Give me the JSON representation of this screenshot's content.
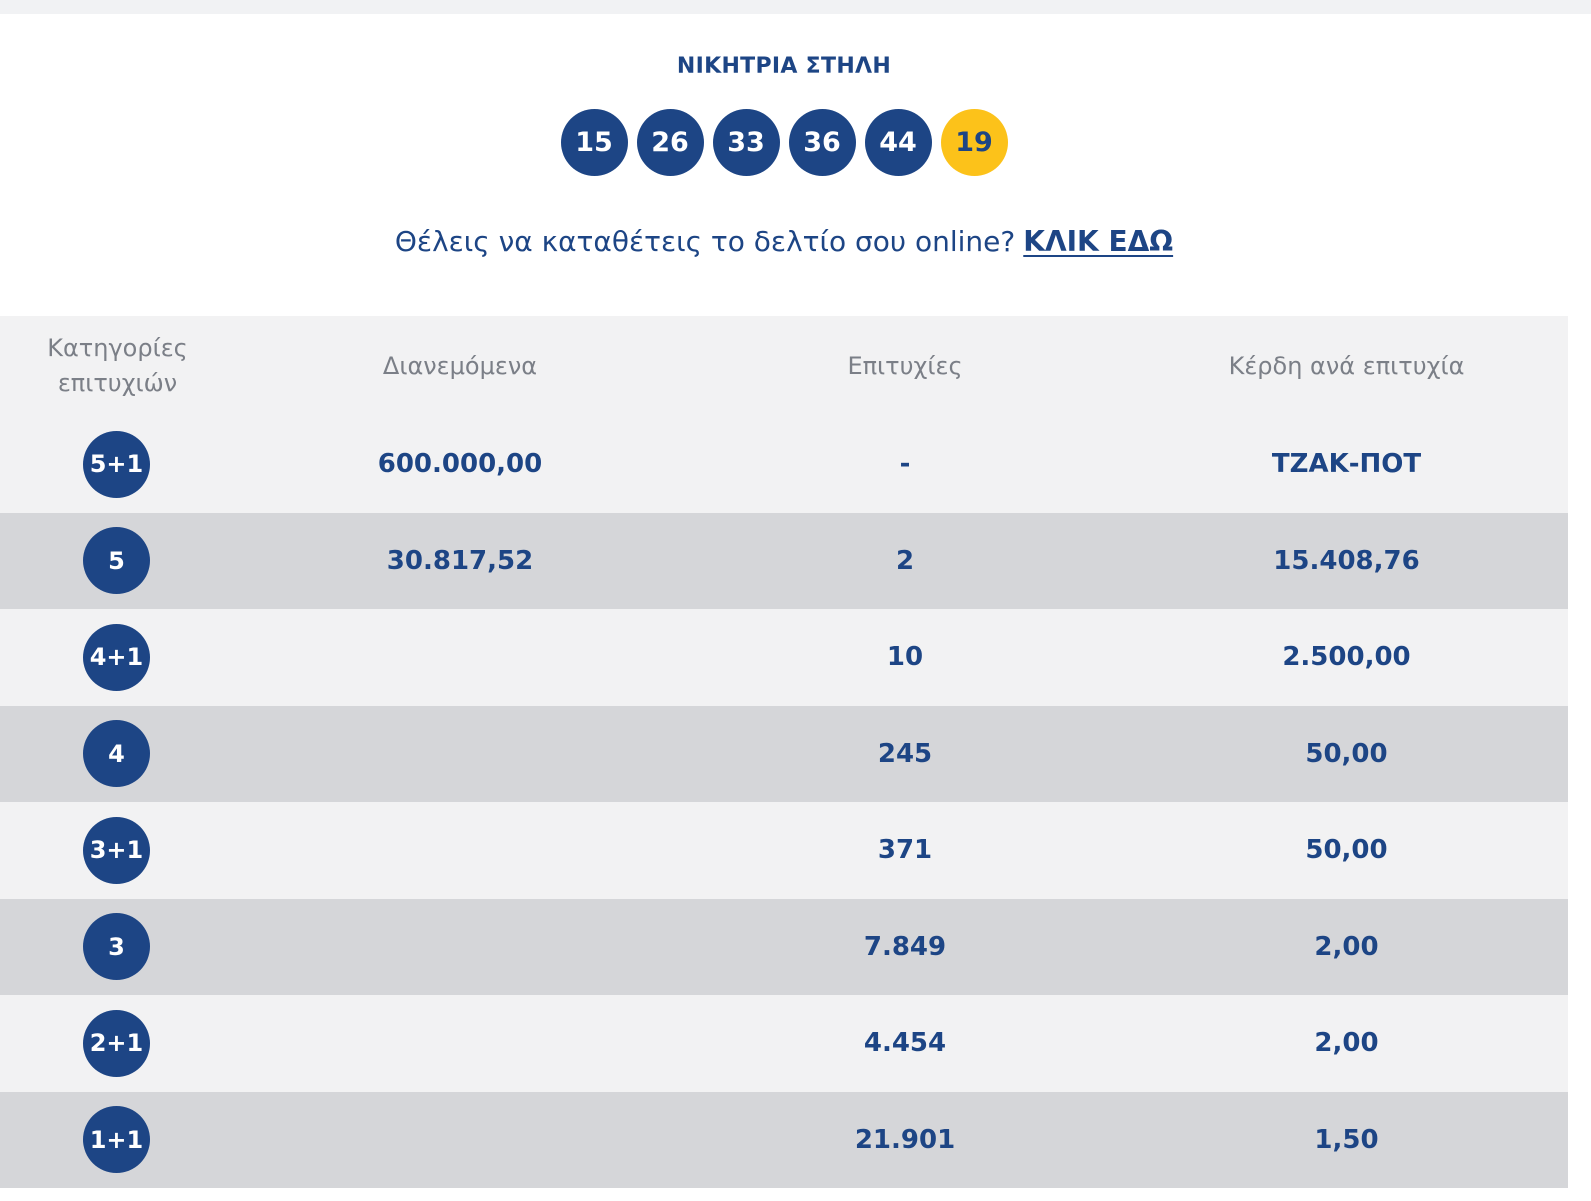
{
  "winning_column": {
    "title": "ΝΙΚΗΤΡΙΑ ΣΤΗΛΗ",
    "numbers": [
      "15",
      "26",
      "33",
      "36",
      "44"
    ],
    "joker": "19",
    "colors": {
      "main_ball": "#1d4585",
      "joker_ball": "#fcc21a"
    }
  },
  "online": {
    "question": "Θέλεις να καταθέτεις το δελτίο σου online?",
    "link_label": "ΚΛΙΚ ΕΔΩ"
  },
  "table": {
    "headers": {
      "category": "Κατηγορίες επιτυχιών",
      "distributed": "Διανεμόμενα",
      "winners": "Επιτυχίες",
      "prize": "Κέρδη ανά επιτυχία"
    },
    "rows": [
      {
        "category": "5+1",
        "distributed": "600.000,00",
        "winners": "-",
        "prize": "ΤΖΑΚ-ΠΟΤ"
      },
      {
        "category": "5",
        "distributed": "30.817,52",
        "winners": "2",
        "prize": "15.408,76"
      },
      {
        "category": "4+1",
        "distributed": "",
        "winners": "10",
        "prize": "2.500,00"
      },
      {
        "category": "4",
        "distributed": "",
        "winners": "245",
        "prize": "50,00"
      },
      {
        "category": "3+1",
        "distributed": "",
        "winners": "371",
        "prize": "50,00"
      },
      {
        "category": "3",
        "distributed": "",
        "winners": "7.849",
        "prize": "2,00"
      },
      {
        "category": "2+1",
        "distributed": "",
        "winners": "4.454",
        "prize": "2,00"
      },
      {
        "category": "1+1",
        "distributed": "",
        "winners": "21.901",
        "prize": "1,50"
      }
    ]
  }
}
